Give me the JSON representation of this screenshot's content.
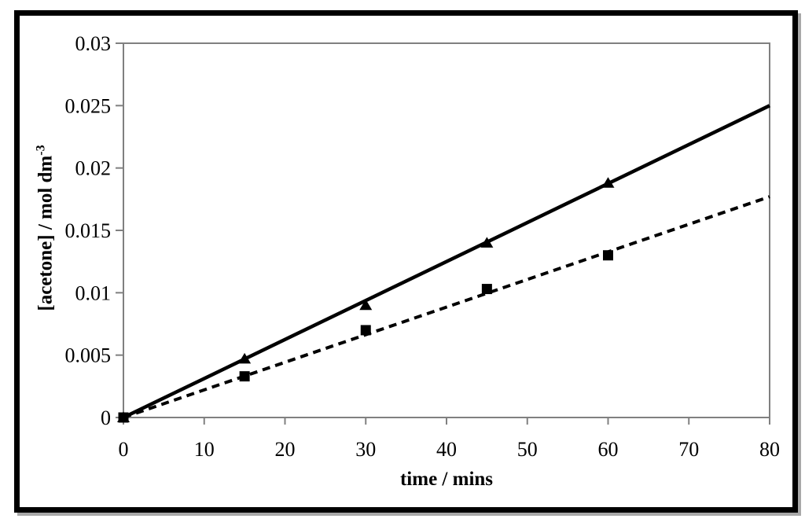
{
  "chart_data": {
    "type": "line",
    "title": "",
    "xlabel": "time / mins",
    "ylabel": "[acetone] / mol dm",
    "ylabel_superscript": "-3",
    "xlim": [
      0,
      80
    ],
    "ylim": [
      0,
      0.03
    ],
    "xticks": {
      "values": [
        0,
        10,
        20,
        30,
        40,
        50,
        60,
        70,
        80
      ],
      "labels": [
        "0",
        "10",
        "20",
        "30",
        "40",
        "50",
        "60",
        "70",
        "80"
      ]
    },
    "yticks": {
      "values": [
        0,
        0.005,
        0.01,
        0.015,
        0.02,
        0.025,
        0.03
      ],
      "labels": [
        "0",
        "0.005",
        "0.01",
        "0.015",
        "0.02",
        "0.025",
        "0.03"
      ]
    },
    "grid": false,
    "legend": "none",
    "axis_color": "#808080",
    "text_color": "#000000",
    "series": [
      {
        "name": "run-1-triangles",
        "marker": "triangle",
        "line_style": "solid",
        "color": "#000000",
        "points": [
          [
            0,
            0
          ],
          [
            15,
            0.0047
          ],
          [
            30,
            0.009
          ],
          [
            45,
            0.014
          ],
          [
            60,
            0.0188
          ]
        ],
        "trendline": {
          "x": [
            0,
            80
          ],
          "y": [
            0,
            0.025
          ]
        }
      },
      {
        "name": "run-2-squares",
        "marker": "square",
        "line_style": "dashed",
        "color": "#000000",
        "points": [
          [
            0,
            0
          ],
          [
            15,
            0.0033
          ],
          [
            30,
            0.007
          ],
          [
            45,
            0.0103
          ],
          [
            60,
            0.013
          ]
        ],
        "trendline": {
          "x": [
            0,
            80
          ],
          "y": [
            0,
            0.0177
          ]
        }
      }
    ]
  }
}
